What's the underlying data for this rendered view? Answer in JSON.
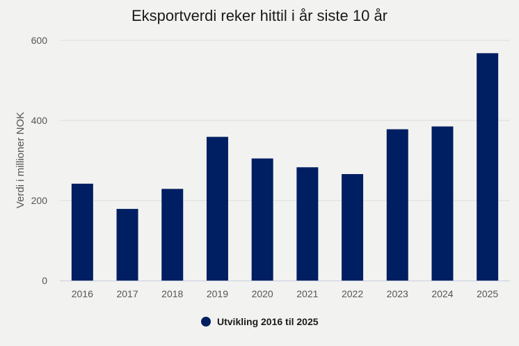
{
  "chart_data": {
    "type": "bar",
    "title": "Eksportverdi reker hittil i år siste 10 år",
    "xlabel": "",
    "ylabel": "Verdi i millioner NOK",
    "categories": [
      "2016",
      "2017",
      "2018",
      "2019",
      "2020",
      "2021",
      "2022",
      "2023",
      "2024",
      "2025"
    ],
    "series": [
      {
        "name": "Utvikling 2016 til 2025",
        "values": [
          242,
          179,
          229,
          359,
          305,
          283,
          266,
          378,
          385,
          568
        ],
        "color": "#001f62"
      }
    ],
    "ylim": [
      0,
      600
    ],
    "yticks": [
      0,
      200,
      400,
      600
    ],
    "grid": true,
    "legend_position": "bottom"
  }
}
